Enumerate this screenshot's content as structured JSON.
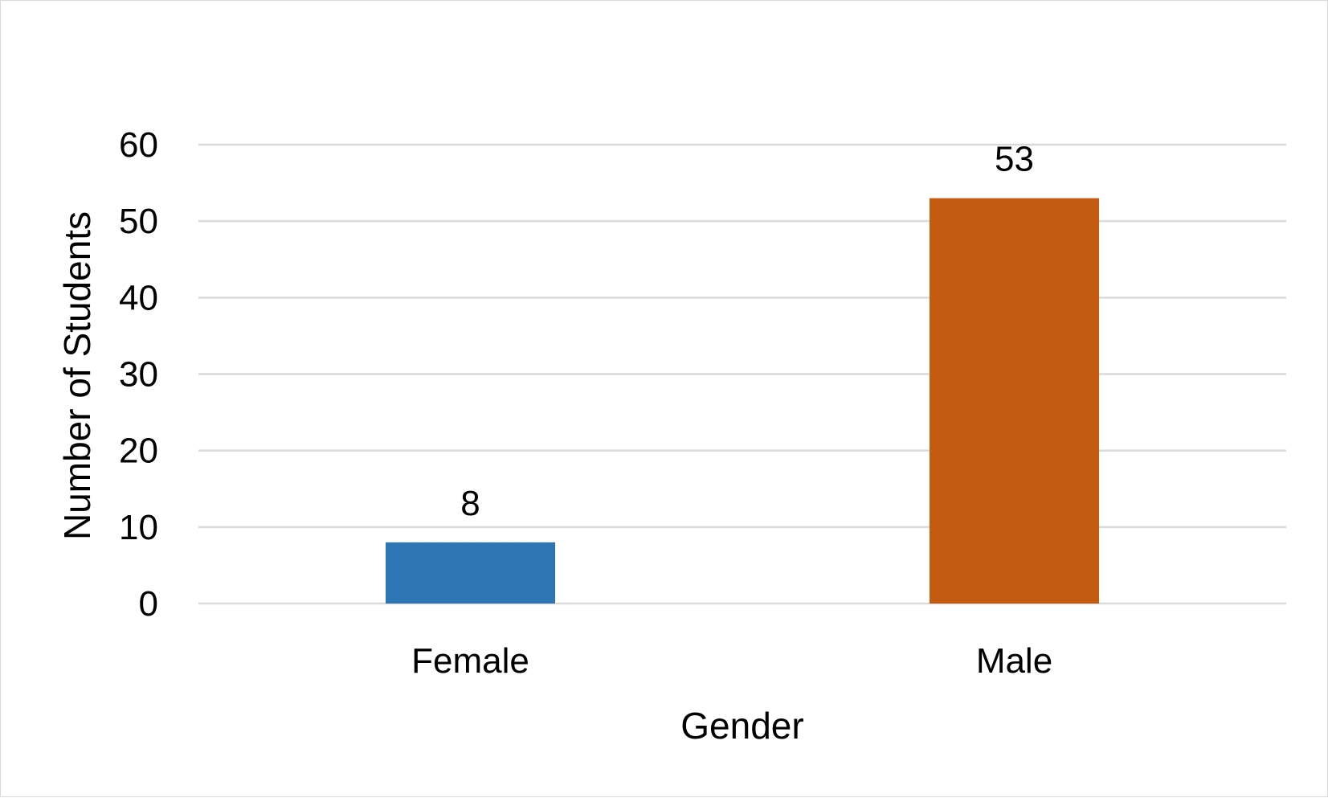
{
  "chart_data": {
    "type": "bar",
    "title": "",
    "xlabel": "Gender",
    "ylabel": "Number of Students",
    "categories": [
      "Female",
      "Male"
    ],
    "values": [
      8,
      53
    ],
    "data_labels": [
      "8",
      "53"
    ],
    "bar_colors": [
      "#2E75B6",
      "#C55A11"
    ],
    "ylim": [
      0,
      60
    ],
    "y_ticks": [
      0,
      10,
      20,
      30,
      40,
      50,
      60
    ],
    "grid": true,
    "legend": "none"
  }
}
